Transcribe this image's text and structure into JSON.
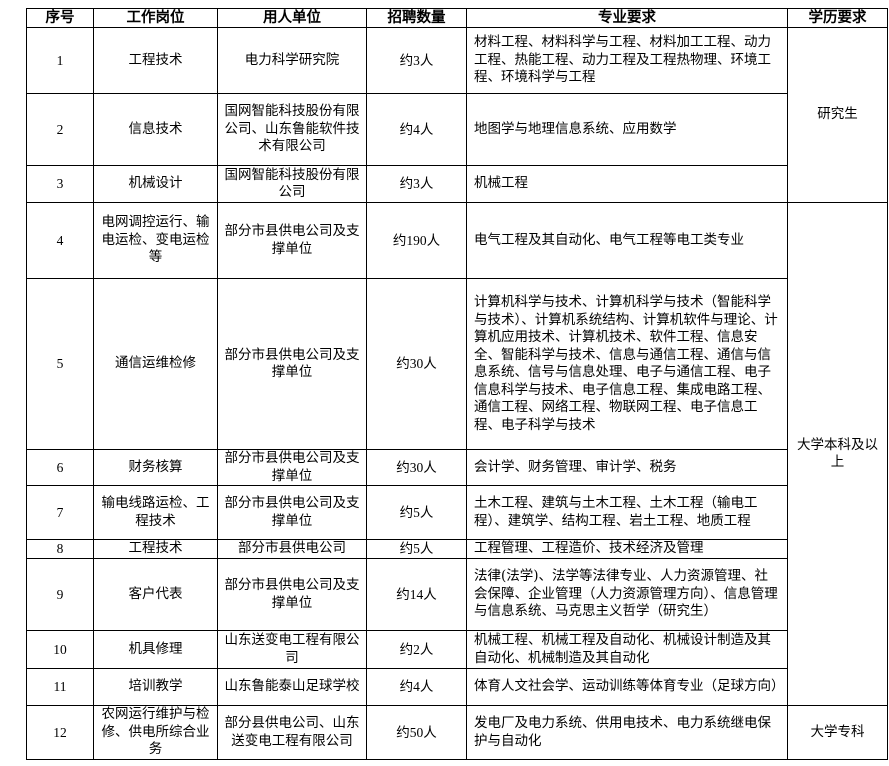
{
  "headers": [
    "序号",
    "工作岗位",
    "用人单位",
    "招聘数量",
    "专业要求",
    "学历要求"
  ],
  "rows": [
    {
      "no": "1",
      "position": "工程技术",
      "employer": "电力科学研究院",
      "count": "约3人",
      "major": "材料工程、材料科学与工程、材料加工工程、动力工程、热能工程、动力工程及工程热物理、环境工程、环境科学与工程"
    },
    {
      "no": "2",
      "position": "信息技术",
      "employer": "国网智能科技股份有限公司、山东鲁能软件技术有限公司",
      "count": "约4人",
      "major": "地图学与地理信息系统、应用数学"
    },
    {
      "no": "3",
      "position": "机械设计",
      "employer": "国网智能科技股份有限公司",
      "count": "约3人",
      "major": "机械工程"
    },
    {
      "no": "4",
      "position": "电网调控运行、输电运检、变电运检等",
      "employer": "部分市县供电公司及支撑单位",
      "count": "约190人",
      "major": "电气工程及其自动化、电气工程等电工类专业"
    },
    {
      "no": "5",
      "position": "通信运维检修",
      "employer": "部分市县供电公司及支撑单位",
      "count": "约30人",
      "major": "计算机科学与技术、计算机科学与技术（智能科学与技术）、计算机系统结构、计算机软件与理论、计算机应用技术、计算机技术、软件工程、信息安全、智能科学与技术、信息与通信工程、通信与信息系统、信号与信息处理、电子与通信工程、电子信息科学与技术、电子信息工程、集成电路工程、通信工程、网络工程、物联网工程、电子信息工程、电子科学与技术"
    },
    {
      "no": "6",
      "position": "财务核算",
      "employer": "部分市县供电公司及支撑单位",
      "count": "约30人",
      "major": "会计学、财务管理、审计学、税务"
    },
    {
      "no": "7",
      "position": "输电线路运检、工程技术",
      "employer": "部分市县供电公司及支撑单位",
      "count": "约5人",
      "major": "土木工程、建筑与土木工程、土木工程（输电工程）、建筑学、结构工程、岩土工程、地质工程"
    },
    {
      "no": "8",
      "position": "工程技术",
      "employer": "部分市县供电公司",
      "count": "约5人",
      "major": "工程管理、工程造价、技术经济及管理"
    },
    {
      "no": "9",
      "position": "客户代表",
      "employer": "部分市县供电公司及支撑单位",
      "count": "约14人",
      "major": "法律(法学)、法学等法律专业、人力资源管理、社会保障、企业管理（人力资源管理方向）、信息管理与信息系统、马克思主义哲学（研究生）"
    },
    {
      "no": "10",
      "position": "机具修理",
      "employer": "山东送变电工程有限公司",
      "count": "约2人",
      "major": "机械工程、机械工程及自动化、机械设计制造及其自动化、机械制造及其自动化"
    },
    {
      "no": "11",
      "position": "培训教学",
      "employer": "山东鲁能泰山足球学校",
      "count": "约4人",
      "major": "体育人文社会学、运动训练等体育专业（足球方向）"
    },
    {
      "no": "12",
      "position": "农网运行维护与检修、供电所综合业务",
      "employer": "部分县供电公司、山东送变电工程有限公司",
      "count": "约50人",
      "major": "发电厂及电力系统、供用电技术、电力系统继电保护与自动化"
    }
  ],
  "education": [
    "研究生",
    "大学本科及以上",
    "大学专科"
  ]
}
